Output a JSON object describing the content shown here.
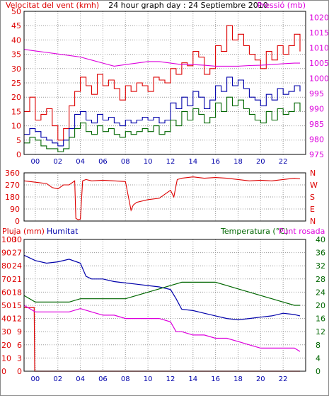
{
  "colors": {
    "red": "#dd0000",
    "blue": "#0000aa",
    "green": "#006600",
    "magenta": "#dd00dd",
    "text": "#000000",
    "frame": "#000000"
  },
  "chart_data": [
    {
      "type": "line",
      "title": "24 hour graph day : 24 Septiembre 2010",
      "ylabel_left": "Velocitat del vent (kmh)",
      "ylabel_right": "Pressió (mb)",
      "x_ticks": [
        "00",
        "02",
        "04",
        "06",
        "08",
        "10",
        "12",
        "14",
        "16",
        "18",
        "20",
        "22"
      ],
      "y_left_ticks": [
        "0",
        "5",
        "10",
        "15",
        "20",
        "25",
        "30",
        "35",
        "40",
        "45",
        "50"
      ],
      "y_right_ticks": [
        "975",
        "980",
        "985",
        "990",
        "995",
        "1000",
        "1005",
        "1010",
        "1015",
        "1020"
      ],
      "xlim": [
        -1,
        24
      ],
      "ylim_left": [
        0,
        50
      ],
      "ylim_right": [
        975,
        1022
      ],
      "grid": true,
      "series": [
        {
          "axis": "left",
          "x": [
            -1,
            -0.5,
            0,
            0.5,
            1,
            1.5,
            2,
            2.5,
            3,
            3.5,
            4,
            4.5,
            5,
            5.5,
            6,
            6.5,
            7,
            7.5,
            8,
            8.5,
            9,
            9.5,
            10,
            10.5,
            11,
            11.5,
            12,
            12.5,
            13,
            13.5,
            14,
            14.5,
            15,
            15.5,
            16,
            16.5,
            17,
            17.5,
            18,
            18.5,
            19,
            19.5,
            20,
            20.5,
            21,
            21.5,
            22,
            22.5,
            23,
            23.5
          ],
          "values": [
            15,
            20,
            12,
            14,
            16,
            10,
            5,
            9,
            17,
            22,
            27,
            24,
            21,
            28,
            24,
            26,
            23,
            19,
            24,
            22,
            25,
            24,
            22,
            27,
            26,
            25,
            30,
            28,
            32,
            31,
            36,
            34,
            28,
            30,
            38,
            36,
            45,
            40,
            42,
            38,
            35,
            33,
            30,
            36,
            33,
            38,
            35,
            38,
            42,
            36
          ]
        },
        {
          "axis": "left",
          "x": [
            -1,
            -0.5,
            0,
            0.5,
            1,
            1.5,
            2,
            2.5,
            3,
            3.5,
            4,
            4.5,
            5,
            5.5,
            6,
            6.5,
            7,
            7.5,
            8,
            8.5,
            9,
            9.5,
            10,
            10.5,
            11,
            11.5,
            12,
            12.5,
            13,
            13.5,
            14,
            14.5,
            15,
            15.5,
            16,
            16.5,
            17,
            17.5,
            18,
            18.5,
            19,
            19.5,
            20,
            20.5,
            21,
            21.5,
            22,
            22.5,
            23,
            23.5
          ],
          "values": [
            7,
            9,
            8,
            6,
            5,
            4,
            3,
            5,
            9,
            14,
            15,
            12,
            11,
            14,
            12,
            13,
            11,
            10,
            12,
            11,
            12,
            13,
            12,
            13,
            11,
            12,
            18,
            16,
            20,
            17,
            22,
            20,
            16,
            19,
            24,
            22,
            27,
            24,
            26,
            23,
            20,
            19,
            17,
            21,
            19,
            23,
            21,
            22,
            24,
            22
          ]
        },
        {
          "axis": "left",
          "x": [
            -1,
            -0.5,
            0,
            0.5,
            1,
            1.5,
            2,
            2.5,
            3,
            3.5,
            4,
            4.5,
            5,
            5.5,
            6,
            6.5,
            7,
            7.5,
            8,
            8.5,
            9,
            9.5,
            10,
            10.5,
            11,
            11.5,
            12,
            12.5,
            13,
            13.5,
            14,
            14.5,
            15,
            15.5,
            16,
            16.5,
            17,
            17.5,
            18,
            18.5,
            19,
            19.5,
            20,
            20.5,
            21,
            21.5,
            22,
            22.5,
            23,
            23.5
          ],
          "values": [
            4,
            6,
            5,
            3,
            2,
            2,
            1,
            2,
            6,
            9,
            11,
            8,
            7,
            10,
            8,
            9,
            7,
            6,
            8,
            7,
            8,
            9,
            8,
            10,
            7,
            8,
            12,
            10,
            15,
            12,
            16,
            14,
            11,
            13,
            18,
            15,
            20,
            17,
            19,
            16,
            14,
            12,
            11,
            15,
            12,
            16,
            14,
            15,
            18,
            15
          ]
        },
        {
          "axis": "right",
          "x": [
            -1,
            0,
            1,
            2,
            3,
            4,
            5,
            6,
            7,
            8,
            9,
            10,
            11,
            12,
            13,
            14,
            15,
            16,
            17,
            18,
            19,
            20,
            21,
            22,
            23,
            23.5
          ],
          "values": [
            1009.5,
            1009,
            1008.5,
            1008,
            1007.5,
            1007,
            1006,
            1005,
            1004,
            1004.5,
            1005,
            1005.5,
            1005.5,
            1005,
            1004.5,
            1004.5,
            1004.3,
            1004,
            1004,
            1004,
            1004.2,
            1004.3,
            1004.5,
            1004.8,
            1005,
            1005
          ]
        }
      ]
    },
    {
      "type": "line",
      "y_left_ticks": [
        "0",
        "90",
        "180",
        "270",
        "360"
      ],
      "y_right_ticks": [
        "N",
        "E",
        "S",
        "W",
        "N"
      ],
      "ylim": [
        0,
        360
      ],
      "x_ticks": [],
      "series": [
        {
          "x": [
            -1,
            0,
            1,
            1.5,
            2,
            2.5,
            3,
            3.5,
            3.6,
            3.8,
            4,
            4.2,
            4.5,
            5,
            6,
            7,
            8,
            8.5,
            8.7,
            9,
            10,
            11,
            11.5,
            12,
            12.3,
            12.6,
            13,
            14,
            15,
            16,
            17,
            18,
            19,
            20,
            21,
            22,
            23,
            23.5
          ],
          "values": [
            300,
            290,
            280,
            250,
            240,
            270,
            270,
            300,
            20,
            10,
            15,
            300,
            310,
            300,
            305,
            300,
            295,
            80,
            120,
            140,
            160,
            170,
            200,
            230,
            180,
            310,
            320,
            330,
            320,
            325,
            320,
            310,
            300,
            305,
            300,
            310,
            320,
            315
          ]
        }
      ]
    },
    {
      "type": "line",
      "ylabel_left": "Pluja (mm)",
      "ylabel_left2": "Humitat",
      "ylabel_right": "Temperatura (°C)",
      "ylabel_right2": "Punt rosada",
      "x_ticks": [
        "00",
        "02",
        "04",
        "06",
        "08",
        "10",
        "12",
        "14",
        "16",
        "18",
        "20",
        "22"
      ],
      "y_left_ticks": [
        "0",
        "10",
        "20",
        "30",
        "40",
        "50",
        "60",
        "70",
        "80",
        "90",
        "100"
      ],
      "y_left2_ticks": [
        "0",
        "3",
        "6",
        "9",
        "12",
        "15",
        "18",
        "21",
        "24",
        "27",
        "30"
      ],
      "y_right_ticks": [
        "0",
        "4",
        "8",
        "12",
        "16",
        "20",
        "24",
        "28",
        "32",
        "36",
        "40"
      ],
      "xlim": [
        -1,
        24
      ],
      "ylim_left": [
        0,
        100
      ],
      "ylim_rain": [
        0,
        30
      ],
      "ylim_right": [
        0,
        40
      ],
      "series": [
        {
          "name": "Humitat",
          "axis": "left",
          "x": [
            -1,
            0,
            1,
            2,
            3,
            4,
            4.5,
            5,
            6,
            7,
            8,
            9,
            10,
            11,
            12,
            12.5,
            13,
            14,
            15,
            16,
            17,
            18,
            19,
            20,
            21,
            22,
            23,
            23.5
          ],
          "values": [
            88,
            84,
            82,
            83,
            85,
            82,
            72,
            70,
            70,
            68,
            67,
            66,
            65,
            64,
            62,
            55,
            47,
            46,
            44,
            42,
            40,
            39,
            40,
            41,
            42,
            44,
            43,
            42
          ]
        },
        {
          "name": "Pluja (mm)",
          "axis": "rain",
          "x": [
            -1,
            -0.1,
            -0.05,
            23.5
          ],
          "values": [
            14.5,
            14.5,
            0,
            0
          ]
        },
        {
          "name": "Temperatura (°C)",
          "axis": "right",
          "x": [
            -1,
            0,
            1,
            2,
            3,
            4,
            5,
            6,
            7,
            8,
            9,
            10,
            11,
            12,
            13,
            14,
            15,
            16,
            17,
            18,
            19,
            20,
            21,
            22,
            23,
            23.5
          ],
          "values": [
            23,
            21,
            21,
            21,
            21,
            22,
            22,
            22,
            22,
            22,
            23,
            24,
            25,
            26,
            27,
            27,
            27,
            27,
            26,
            25,
            24,
            23,
            22,
            21,
            20,
            20
          ]
        },
        {
          "name": "Punt rosada",
          "axis": "right",
          "x": [
            -1,
            0,
            1,
            2,
            3,
            4,
            5,
            6,
            7,
            8,
            9,
            10,
            11,
            12,
            12.5,
            13,
            14,
            15,
            16,
            17,
            18,
            19,
            20,
            21,
            22,
            23,
            23.5
          ],
          "values": [
            20,
            18,
            18,
            18,
            18,
            19,
            18,
            17,
            17,
            16,
            16,
            16,
            16,
            15,
            12,
            12,
            11,
            11,
            10,
            10,
            9,
            8,
            7,
            7,
            7,
            7,
            6
          ]
        }
      ]
    }
  ]
}
